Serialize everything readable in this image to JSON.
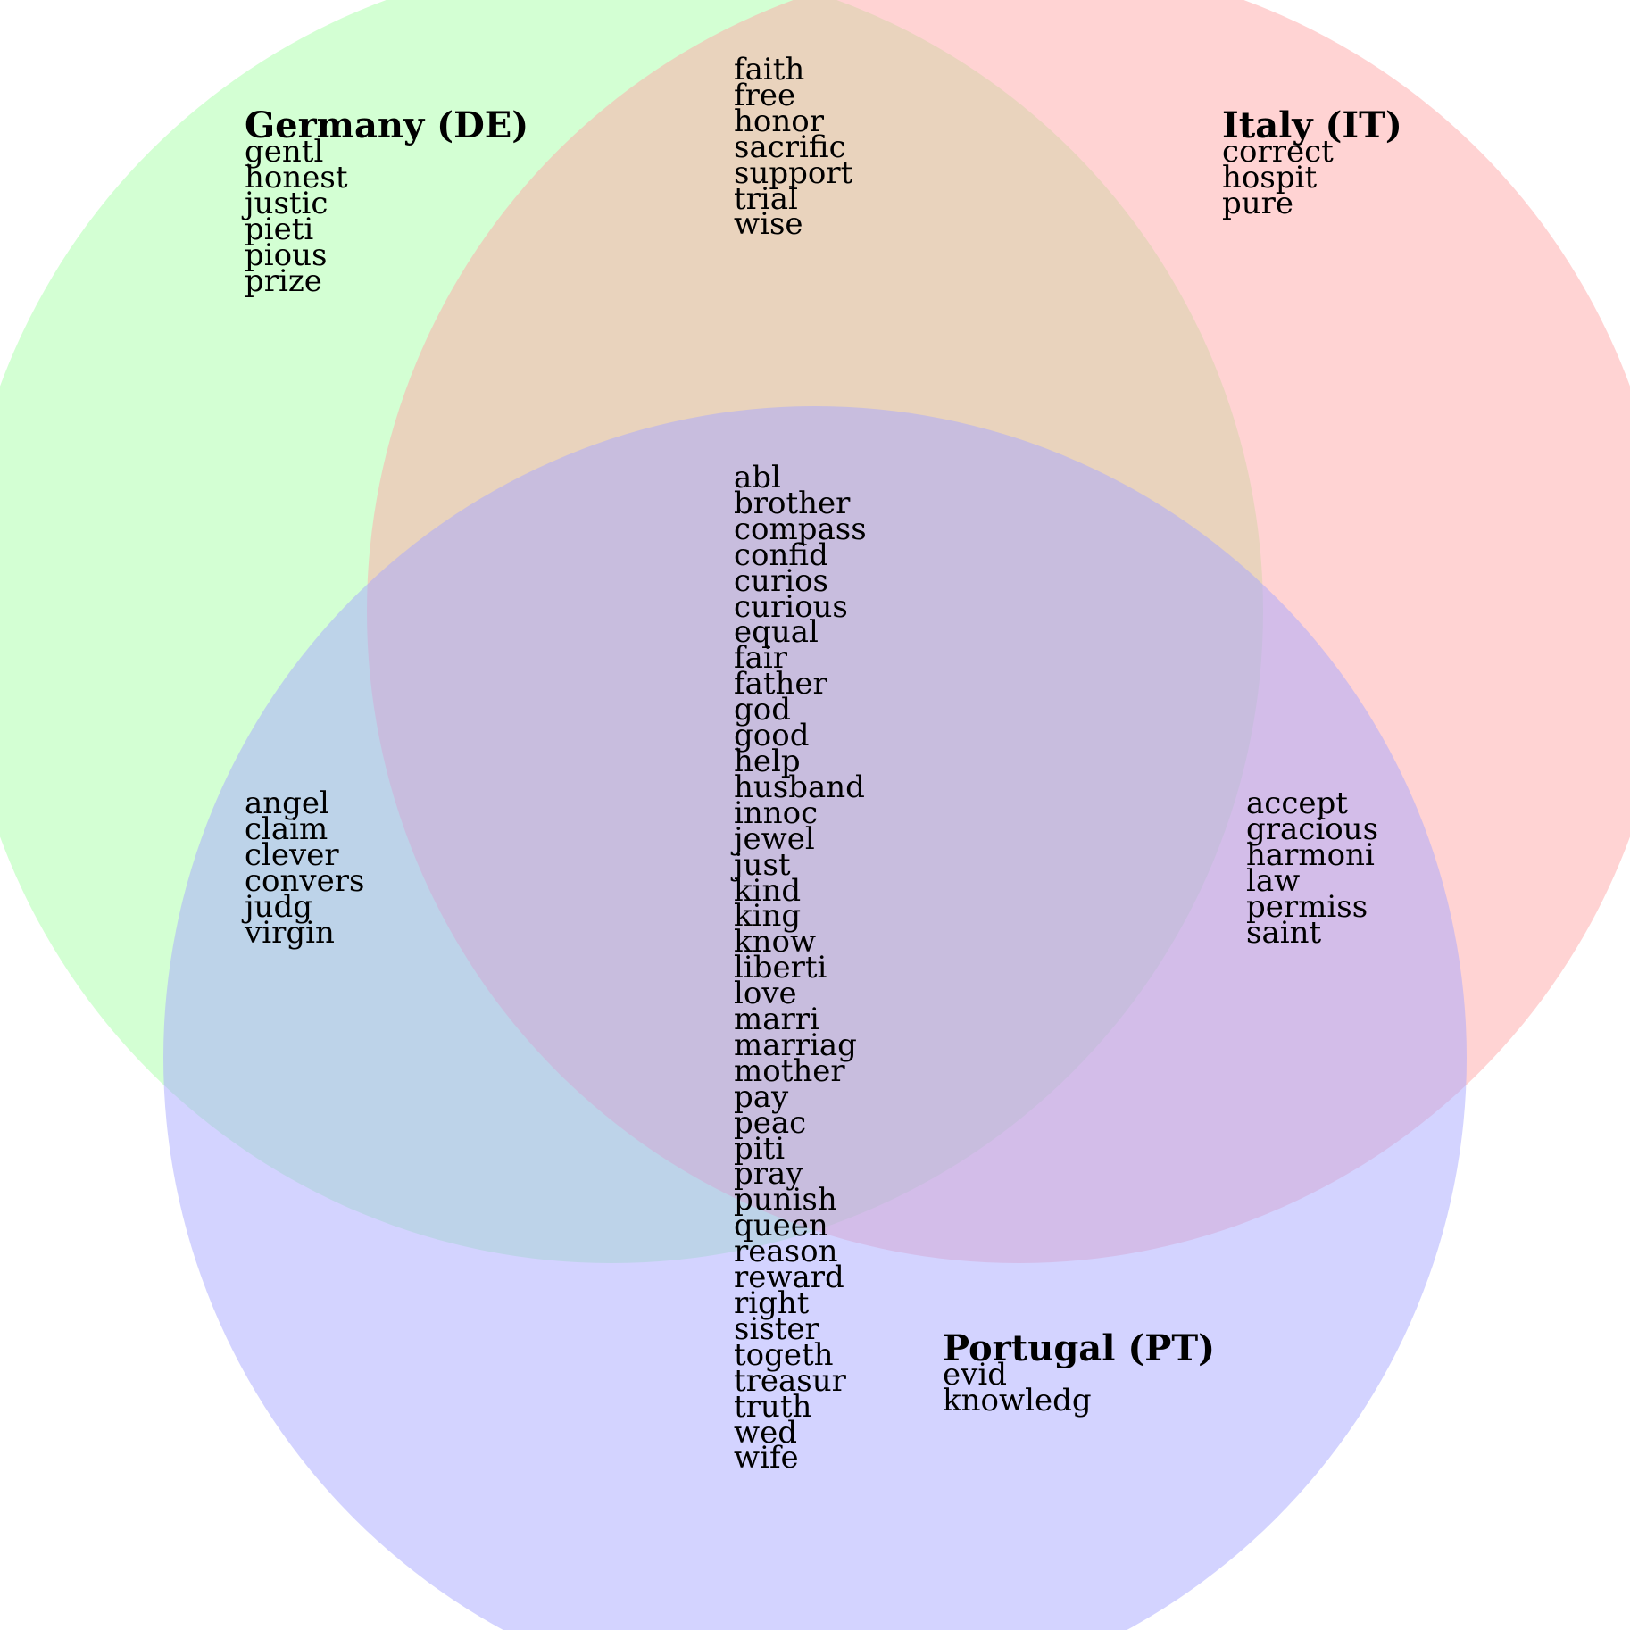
{
  "colors": {
    "germany": "#a8ffa8",
    "italy": "#ffa8a8",
    "portugal": "#a8a8ff"
  },
  "sets": {
    "germany": {
      "title": "Germany (DE)"
    },
    "italy": {
      "title": "Italy (IT)"
    },
    "portugal": {
      "title": "Portugal (PT)"
    }
  },
  "regions": {
    "germany_only": [
      "gentl",
      "honest",
      "justic",
      "pieti",
      "pious",
      "prize"
    ],
    "italy_only": [
      "correct",
      "hospit",
      "pure"
    ],
    "portugal_only": [
      "evid",
      "knowledg"
    ],
    "germany_italy": [
      "faith",
      "free",
      "honor",
      "sacrific",
      "support",
      "trial",
      "wise"
    ],
    "germany_portugal": [
      "angel",
      "claim",
      "clever",
      "convers",
      "judg",
      "virgin"
    ],
    "italy_portugal": [
      "accept",
      "gracious",
      "harmoni",
      "law",
      "permiss",
      "saint"
    ],
    "all_three": [
      "abl",
      "brother",
      "compass",
      "confid",
      "curios",
      "curious",
      "equal",
      "fair",
      "father",
      "god",
      "good",
      "help",
      "husband",
      "innoc",
      "jewel",
      "just",
      "kind",
      "king",
      "know",
      "liberti",
      "love",
      "marri",
      "marriag",
      "mother",
      "pay",
      "peac",
      "piti",
      "pray",
      "punish",
      "queen",
      "reason",
      "reward",
      "right",
      "sister",
      "togeth",
      "treasur",
      "truth",
      "wed",
      "wife"
    ]
  }
}
